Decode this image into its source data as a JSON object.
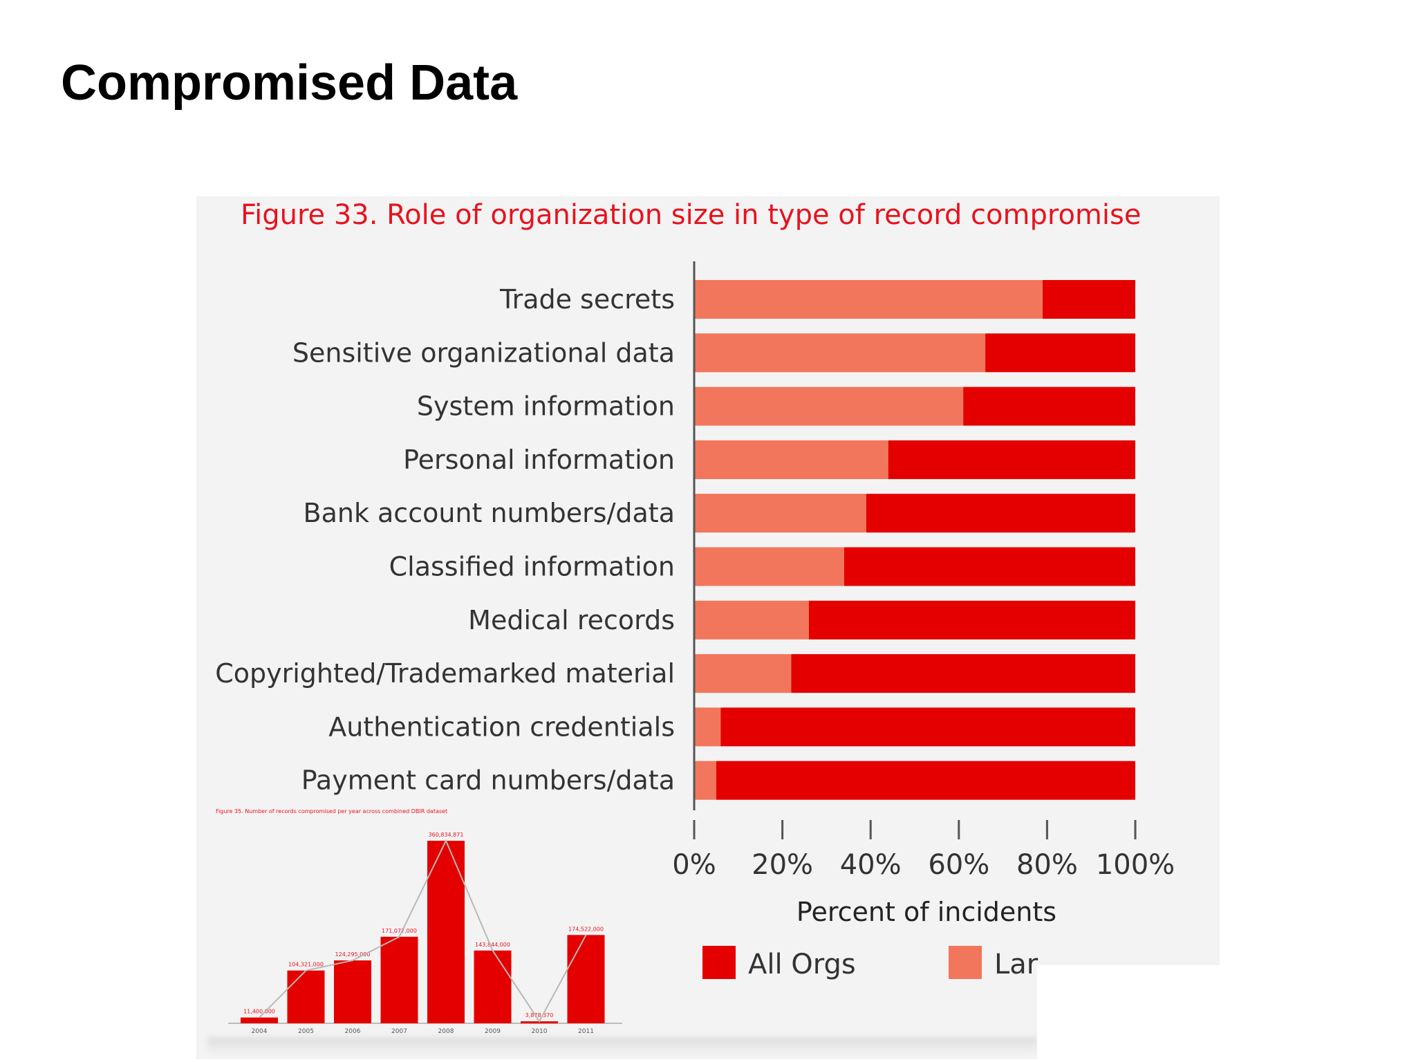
{
  "slide": {
    "title": "Compromised Data"
  },
  "colors": {
    "all_orgs": "#e50000",
    "larger_orgs": "#f2765c",
    "caption": "#e8121d",
    "axis": "#555555"
  },
  "chart_data": [
    {
      "type": "bar",
      "orientation": "horizontal",
      "stacked": true,
      "title": "Figure 33. Role of organization size in type of record compromise",
      "categories": [
        "Trade secrets",
        "Sensitive organizational data",
        "System information",
        "Personal information",
        "Bank account numbers/data",
        "Classified information",
        "Medical records",
        "Copyrighted/Trademarked material",
        "Authentication credentials",
        "Payment card numbers/data"
      ],
      "series": [
        {
          "name": "Larger Orgs",
          "values": [
            79,
            66,
            61,
            44,
            39,
            34,
            26,
            22,
            6,
            5
          ]
        },
        {
          "name": "All Orgs",
          "values": [
            21,
            34,
            39,
            56,
            61,
            66,
            74,
            78,
            94,
            95
          ]
        }
      ],
      "xlabel": "Percent of incidents",
      "xlim": [
        0,
        100
      ],
      "xticks": [
        "0%",
        "20%",
        "40%",
        "60%",
        "80%",
        "100%"
      ],
      "legend": [
        {
          "label": "All Orgs",
          "visible_text": "All Orgs"
        },
        {
          "label": "Larger Orgs",
          "visible_text": "Lar"
        }
      ],
      "legend_position": "bottom"
    },
    {
      "type": "bar",
      "title": "Figure 35. Number of records compromised per year across combined DBIR dataset",
      "categories": [
        "2004",
        "2005",
        "2006",
        "2007",
        "2008",
        "2009",
        "2010",
        "2011"
      ],
      "values": [
        11400000,
        104321000,
        124295000,
        171077000,
        360834871,
        143844000,
        3878370,
        174522000
      ],
      "data_labels": [
        "11,400,000",
        "104,321,000",
        "124,295,000",
        "171,077,000",
        "360,834,871",
        "143,844,000",
        "3,878,370",
        "174,522,000"
      ],
      "ylim": [
        0,
        380000000
      ],
      "trend_line": true
    }
  ]
}
